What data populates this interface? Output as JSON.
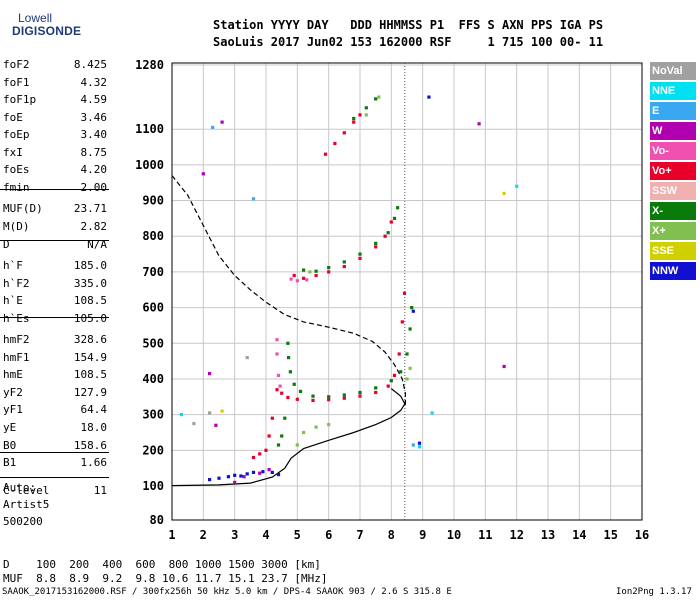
{
  "logo": {
    "top": "Lowell",
    "bottom": "DIGISONDE"
  },
  "header": {
    "line1": "Station YYYY DAY   DDD HHMMSS P1  FFS S AXN PPS IGA PS",
    "line2": "SaoLuis 2017 Jun02 153 162000 RSF     1 715 100 00- 11"
  },
  "params": [
    {
      "key": "foF2",
      "value": "8.425"
    },
    {
      "key": "foF1",
      "value": "4.32"
    },
    {
      "key": "foF1p",
      "value": "4.59"
    },
    {
      "key": "foE",
      "value": "3.46"
    },
    {
      "key": "foEp",
      "value": "3.40"
    },
    {
      "key": "fxI",
      "value": "8.75"
    },
    {
      "key": "foEs",
      "value": "4.20"
    },
    {
      "key": "fmin",
      "value": "2.00"
    },
    {
      "key": "MUF(D)",
      "value": "23.71"
    },
    {
      "key": "M(D)",
      "value": "2.82"
    },
    {
      "key": "D",
      "value": "N/A"
    },
    {
      "key": "h`F",
      "value": "185.0"
    },
    {
      "key": "h`F2",
      "value": "335.0"
    },
    {
      "key": "h`E",
      "value": "108.5"
    },
    {
      "key": "h`Es",
      "value": "105.0"
    },
    {
      "key": "hmF2",
      "value": "328.6"
    },
    {
      "key": "hmF1",
      "value": "154.9"
    },
    {
      "key": "hmE",
      "value": "108.5"
    },
    {
      "key": "yF2",
      "value": "127.9"
    },
    {
      "key": "yF1",
      "value": "64.4"
    },
    {
      "key": "yE",
      "value": "18.0"
    },
    {
      "key": "B0",
      "value": "158.6"
    },
    {
      "key": "B1",
      "value": "1.66"
    },
    {
      "key": "C-level",
      "value": "11"
    }
  ],
  "auto": {
    "line1": "Auto:",
    "line2": "Artist5",
    "line3": "500200"
  },
  "legend": [
    {
      "label": "NoVal",
      "color": "#a0a0a0"
    },
    {
      "label": "NNE",
      "color": "#00e0f0"
    },
    {
      "label": "E",
      "color": "#3aa8f0"
    },
    {
      "label": "W",
      "color": "#b000b0"
    },
    {
      "label": "Vo-",
      "color": "#f050b0"
    },
    {
      "label": "Vo+",
      "color": "#e8002a"
    },
    {
      "label": "SSW",
      "color": "#f0b0b0"
    },
    {
      "label": "X-",
      "color": "#0a7a0a"
    },
    {
      "label": "X+",
      "color": "#80c050"
    },
    {
      "label": "SSE",
      "color": "#d0d000"
    },
    {
      "label": "NNW",
      "color": "#1010d0"
    }
  ],
  "bottom": {
    "dist_line": "D    100  200  400  600  800 1000 1500 3000 [km]",
    "muf_line": "MUF  8.8  8.9  9.2  9.8 10.6 11.7 15.1 23.7 [MHz]"
  },
  "footer": {
    "left": "SAAOK_2017153162000.RSF / 300fx256h 50 kHz 5.0 km / DPS-4 SAAOK 903 / 2.6 S 315.8 E",
    "right": "Ion2Png 1.3.17"
  },
  "chart_data": {
    "type": "scatter",
    "title": "",
    "xlabel": "",
    "ylabel": "",
    "xlim": [
      1,
      16
    ],
    "ylim": [
      80,
      1280
    ],
    "xticks": [
      1,
      2,
      3,
      4,
      5,
      6,
      7,
      8,
      9,
      10,
      11,
      12,
      13,
      14,
      15,
      16
    ],
    "yticks": [
      80,
      100,
      200,
      300,
      400,
      500,
      600,
      700,
      800,
      900,
      1000,
      1100,
      1280
    ],
    "grid": true,
    "series": [
      {
        "name": "Vo+",
        "color": "#e8002a",
        "points": [
          [
            4.35,
            370
          ],
          [
            4.5,
            360
          ],
          [
            4.7,
            348
          ],
          [
            5.0,
            343
          ],
          [
            5.5,
            340
          ],
          [
            6.0,
            342
          ],
          [
            6.5,
            346
          ],
          [
            7.0,
            352
          ],
          [
            7.5,
            362
          ],
          [
            7.9,
            380
          ],
          [
            8.1,
            410
          ],
          [
            8.25,
            470
          ],
          [
            8.35,
            560
          ],
          [
            8.42,
            640
          ],
          [
            3.6,
            180
          ],
          [
            3.8,
            190
          ],
          [
            4.0,
            200
          ],
          [
            4.1,
            240
          ],
          [
            4.2,
            290
          ],
          [
            4.9,
            690
          ],
          [
            5.2,
            682
          ],
          [
            5.6,
            690
          ],
          [
            6.0,
            700
          ],
          [
            6.5,
            715
          ],
          [
            7.0,
            738
          ],
          [
            7.5,
            770
          ],
          [
            7.8,
            800
          ],
          [
            8.0,
            840
          ],
          [
            5.9,
            1030
          ],
          [
            6.2,
            1060
          ],
          [
            6.5,
            1090
          ],
          [
            6.8,
            1120
          ],
          [
            7.0,
            1140
          ]
        ]
      },
      {
        "name": "Vo-",
        "color": "#f050b0",
        "points": [
          [
            4.35,
            510
          ],
          [
            4.35,
            470
          ],
          [
            4.4,
            410
          ],
          [
            4.45,
            380
          ],
          [
            4.8,
            680
          ],
          [
            5.0,
            675
          ],
          [
            5.3,
            678
          ]
        ]
      },
      {
        "name": "X-",
        "color": "#0a7a0a",
        "points": [
          [
            4.7,
            500
          ],
          [
            4.72,
            460
          ],
          [
            4.78,
            420
          ],
          [
            4.9,
            385
          ],
          [
            5.1,
            365
          ],
          [
            5.5,
            352
          ],
          [
            6.0,
            350
          ],
          [
            6.5,
            355
          ],
          [
            7.0,
            362
          ],
          [
            7.5,
            375
          ],
          [
            8.0,
            395
          ],
          [
            8.3,
            420
          ],
          [
            8.5,
            470
          ],
          [
            8.6,
            540
          ],
          [
            8.65,
            600
          ],
          [
            4.6,
            290
          ],
          [
            4.5,
            240
          ],
          [
            4.4,
            215
          ],
          [
            5.2,
            705
          ],
          [
            5.6,
            702
          ],
          [
            6.0,
            712
          ],
          [
            6.5,
            728
          ],
          [
            7.0,
            750
          ],
          [
            7.5,
            780
          ],
          [
            7.9,
            810
          ],
          [
            8.1,
            850
          ],
          [
            8.2,
            880
          ],
          [
            6.8,
            1130
          ],
          [
            7.2,
            1160
          ],
          [
            7.5,
            1185
          ]
        ]
      },
      {
        "name": "X+",
        "color": "#80c050",
        "points": [
          [
            5.0,
            215
          ],
          [
            5.2,
            250
          ],
          [
            5.6,
            265
          ],
          [
            6.0,
            272
          ],
          [
            8.5,
            400
          ],
          [
            8.6,
            430
          ],
          [
            5.4,
            700
          ],
          [
            7.2,
            1140
          ],
          [
            7.6,
            1190
          ]
        ]
      },
      {
        "name": "NNW",
        "color": "#1010d0",
        "points": [
          [
            2.2,
            118
          ],
          [
            2.5,
            122
          ],
          [
            2.8,
            126
          ],
          [
            3.0,
            130
          ],
          [
            3.2,
            128
          ],
          [
            3.4,
            134
          ],
          [
            3.6,
            138
          ],
          [
            3.9,
            140
          ],
          [
            4.2,
            138
          ],
          [
            4.4,
            132
          ],
          [
            9.2,
            1190
          ],
          [
            8.7,
            590
          ],
          [
            8.9,
            220
          ]
        ]
      },
      {
        "name": "W",
        "color": "#b000b0",
        "points": [
          [
            3.0,
            110
          ],
          [
            3.3,
            126
          ],
          [
            3.8,
            136
          ],
          [
            4.1,
            146
          ],
          [
            2.6,
            1120
          ],
          [
            2.0,
            975
          ],
          [
            10.8,
            1115
          ],
          [
            11.6,
            435
          ],
          [
            2.2,
            415
          ],
          [
            2.4,
            270
          ]
        ]
      },
      {
        "name": "NNE",
        "color": "#00e0f0",
        "points": [
          [
            1.3,
            300
          ],
          [
            9.3,
            305
          ],
          [
            12.0,
            940
          ],
          [
            8.9,
            210
          ]
        ]
      },
      {
        "name": "E",
        "color": "#3aa8f0",
        "points": [
          [
            2.3,
            1105
          ],
          [
            3.6,
            905
          ],
          [
            8.7,
            215
          ]
        ]
      },
      {
        "name": "SSE",
        "color": "#d0d000",
        "points": [
          [
            11.6,
            920
          ],
          [
            2.6,
            310
          ]
        ]
      },
      {
        "name": "NoVal",
        "color": "#a0a0a0",
        "points": [
          [
            1.7,
            275
          ],
          [
            2.2,
            305
          ],
          [
            3.4,
            460
          ]
        ]
      }
    ],
    "lines": [
      {
        "name": "profile",
        "style": "solid",
        "points": [
          [
            1.0,
            101
          ],
          [
            2.5,
            103
          ],
          [
            3.5,
            108
          ],
          [
            4.2,
            125
          ],
          [
            4.6,
            150
          ],
          [
            4.8,
            178
          ],
          [
            5.2,
            205
          ],
          [
            6.0,
            228
          ],
          [
            6.8,
            250
          ],
          [
            7.5,
            272
          ],
          [
            8.0,
            292
          ],
          [
            8.3,
            312
          ],
          [
            8.43,
            330
          ],
          [
            8.3,
            352
          ],
          [
            8.0,
            373
          ]
        ]
      },
      {
        "name": "dashed",
        "style": "dashed",
        "points": [
          [
            1.0,
            970
          ],
          [
            1.5,
            915
          ],
          [
            2.0,
            830
          ],
          [
            2.5,
            745
          ],
          [
            3.0,
            690
          ],
          [
            3.5,
            650
          ],
          [
            4.0,
            615
          ],
          [
            4.6,
            580
          ],
          [
            5.2,
            560
          ],
          [
            6.0,
            545
          ],
          [
            6.8,
            528
          ],
          [
            7.4,
            505
          ],
          [
            7.8,
            475
          ],
          [
            8.1,
            440
          ],
          [
            8.35,
            400
          ],
          [
            8.45,
            360
          ],
          [
            8.45,
            320
          ]
        ]
      }
    ],
    "vertical_marker_x": 8.43
  }
}
